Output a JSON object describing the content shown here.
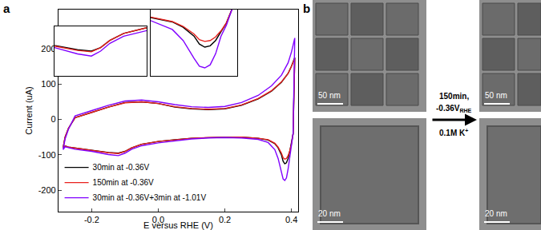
{
  "chart_data": [
    {
      "type": "line",
      "title": "a",
      "x_label": "E versus RHE (V)",
      "y_label": "Current (uA)",
      "x": [
        -0.286,
        -0.28,
        -0.27,
        -0.25,
        -0.2,
        -0.15,
        -0.1,
        -0.05,
        0,
        0.05,
        0.1,
        0.15,
        0.2,
        0.25,
        0.3,
        0.34,
        0.37,
        0.39,
        0.4,
        0.41,
        0.405,
        0.4,
        0.395,
        0.39,
        0.385,
        0.38,
        0.375,
        0.37,
        0.36,
        0.35,
        0.33,
        0.3,
        0.25,
        0.2,
        0.15,
        0.1,
        0.05,
        0,
        -0.05,
        -0.08,
        -0.1,
        -0.12,
        -0.15,
        -0.2,
        -0.25,
        -0.27,
        -0.28,
        -0.286
      ],
      "series": [
        {
          "name": "30min at -0.36V",
          "color": "#000000",
          "line_style": "solid",
          "values": [
            -80,
            -50,
            -25,
            5,
            20,
            35,
            48,
            50,
            45,
            35,
            30,
            28,
            30,
            40,
            58,
            80,
            105,
            130,
            150,
            175,
            -40,
            -70,
            -90,
            -110,
            -122,
            -125,
            -118,
            -100,
            -80,
            -68,
            -58,
            -53,
            -50,
            -50,
            -51,
            -53,
            -57,
            -62,
            -70,
            -80,
            -90,
            -95,
            -93,
            -87,
            -82,
            -78,
            -75,
            -80
          ]
        },
        {
          "name": "150min at -0.36V",
          "color": "#e8201c",
          "line_style": "solid",
          "values": [
            -80,
            -50,
            -25,
            5,
            20,
            35,
            47,
            50,
            45,
            36,
            31,
            29,
            31,
            41,
            59,
            81,
            106,
            130,
            150,
            172,
            -40,
            -70,
            -88,
            -102,
            -110,
            -112,
            -108,
            -95,
            -78,
            -67,
            -57,
            -53,
            -50,
            -50,
            -51,
            -53,
            -57,
            -62,
            -70,
            -80,
            -90,
            -96,
            -94,
            -88,
            -82,
            -78,
            -75,
            -80
          ]
        },
        {
          "name": "30min at -0.36V+3min at -1.01V",
          "color": "#8000ff",
          "line_style": "solid",
          "values": [
            -85,
            -55,
            -28,
            10,
            25,
            40,
            52,
            55,
            50,
            42,
            36,
            34,
            37,
            48,
            68,
            95,
            125,
            160,
            190,
            230,
            -40,
            -75,
            -100,
            -140,
            -165,
            -172,
            -168,
            -150,
            -110,
            -85,
            -65,
            -56,
            -52,
            -51,
            -52,
            -55,
            -60,
            -66,
            -74,
            -84,
            -95,
            -102,
            -99,
            -90,
            -84,
            -80,
            -77,
            -85
          ]
        }
      ],
      "xlim": [
        -0.3,
        0.42
      ],
      "xticks": [
        -0.2,
        {
          "value": 0,
          "label": "0.0"
        },
        0.2,
        0.4
      ],
      "ylim": [
        -260,
        310
      ],
      "yticks": [
        -200,
        -100,
        0,
        100,
        200
      ],
      "grid": false,
      "legend": "lower left"
    },
    {
      "type": "line",
      "xlim": [
        -0.2,
        0.0
      ],
      "ylim": [
        -130,
        -60
      ],
      "tick_labels": false,
      "grid": false
    },
    {
      "type": "line",
      "xlim": [
        0.33,
        0.41
      ],
      "ylim": [
        -190,
        -40
      ],
      "tick_labels": false,
      "grid": false
    }
  ],
  "panel_b": {
    "label": "b",
    "scale_bars": [
      "50 nm",
      "20 nm",
      "50 nm",
      "20 nm"
    ],
    "treatment": {
      "time": "150min,",
      "potential": "-0.36V",
      "potential_subscript": "RHE",
      "electrolyte": "0.1M K",
      "electrolyte_superscript": "+"
    }
  }
}
